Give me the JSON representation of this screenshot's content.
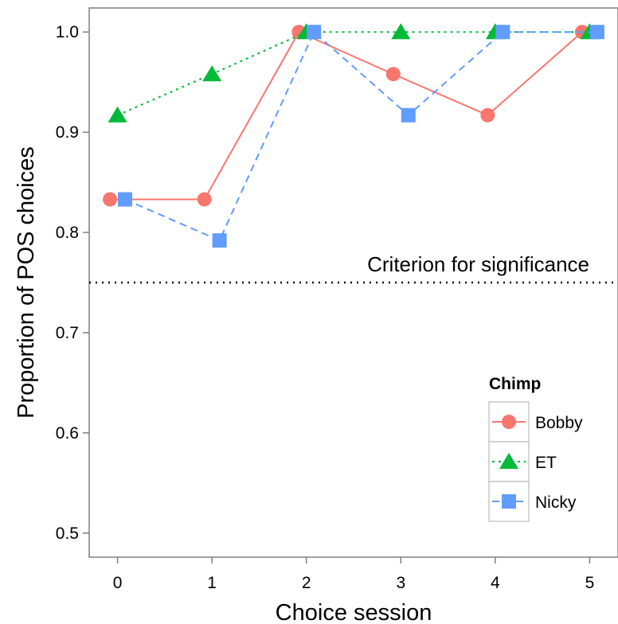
{
  "chart_data": {
    "type": "line",
    "xlabel": "Choice session",
    "ylabel": "Proportion of POS choices",
    "x": [
      0,
      1,
      2,
      3,
      4,
      5
    ],
    "xlim": [
      -0.3,
      5.3
    ],
    "ylim": [
      0.476,
      1.024
    ],
    "xticks": [
      "0",
      "1",
      "2",
      "3",
      "4",
      "5"
    ],
    "yticks": [
      "0.5",
      "0.6",
      "0.7",
      "0.8",
      "0.9",
      "1.0"
    ],
    "grid": false,
    "legend": {
      "title": "Chimp",
      "position": "bottom-right"
    },
    "reference_line": {
      "y": 0.75,
      "style": "dotted",
      "label": "Criterion for significance"
    },
    "series": [
      {
        "name": "Bobby",
        "values": [
          0.833,
          0.833,
          1.0,
          0.958,
          0.917,
          1.0
        ],
        "color": "#F8766D",
        "marker": "circle",
        "line": "solid"
      },
      {
        "name": "ET",
        "values": [
          0.917,
          0.958,
          1.0,
          1.0,
          1.0,
          1.0
        ],
        "color": "#00BA38",
        "marker": "triangle",
        "line": "dotted"
      },
      {
        "name": "Nicky",
        "values": [
          0.833,
          0.792,
          1.0,
          0.917,
          1.0,
          1.0
        ],
        "color": "#619CFF",
        "marker": "square",
        "line": "dashed"
      }
    ]
  }
}
